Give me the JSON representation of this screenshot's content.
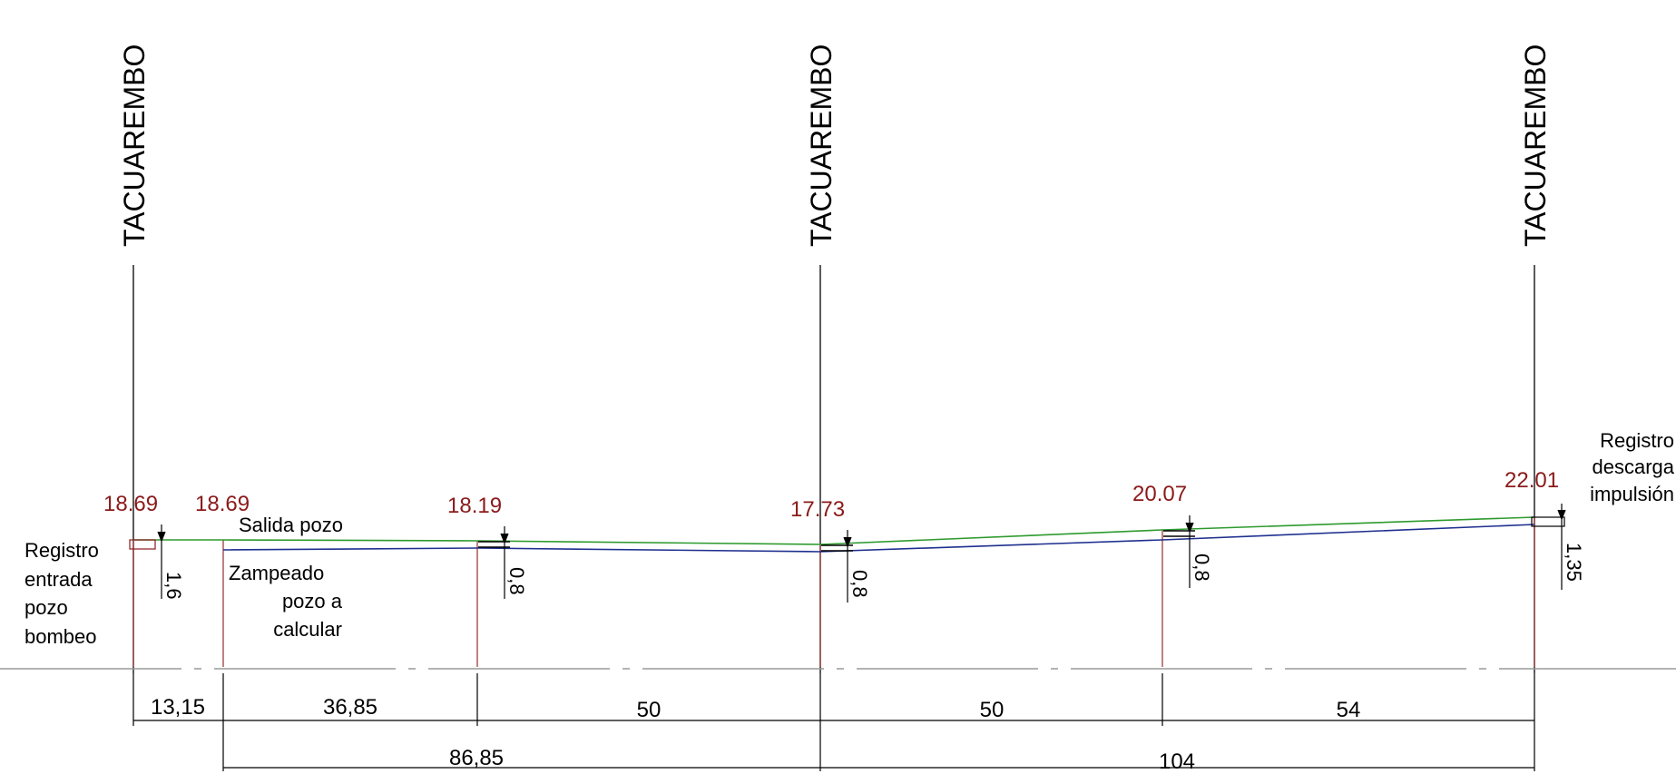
{
  "streets": [
    "TACUAREMBO",
    "TACUAREMBO",
    "TACUAREMBO"
  ],
  "elevations": [
    "18.69",
    "18.69",
    "18.19",
    "17.73",
    "20.07",
    "22.01"
  ],
  "depths": [
    "1,6",
    "0,8",
    "0,8",
    "0,8",
    "1,35"
  ],
  "labels": {
    "registro_entrada": [
      "Registro",
      "entrada",
      "pozo",
      "bombeo"
    ],
    "salida_pozo": "Salida pozo",
    "zampeado": [
      "Zampeado",
      "pozo a",
      "calcular"
    ],
    "registro_descarga": [
      "Registro",
      "descarga",
      "impulsión"
    ]
  },
  "dimensions_row1": [
    "13,15",
    "36,85",
    "50",
    "50",
    "54"
  ],
  "dimensions_row2": [
    "86,85",
    "104"
  ],
  "colors": {
    "elevation_text": "#8b1a1a",
    "ground_line": "#2e9a2e",
    "pipe_line": "#1f2f8f",
    "station_line": "#8b1a1a"
  }
}
